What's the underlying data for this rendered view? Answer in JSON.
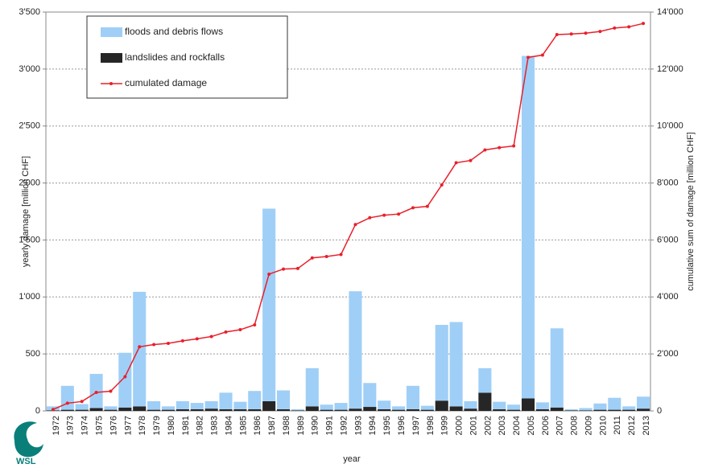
{
  "chart_data": {
    "type": "bar",
    "stacked": true,
    "categories": [
      "1972",
      "1973",
      "1974",
      "1975",
      "1976",
      "1977",
      "1978",
      "1979",
      "1980",
      "1981",
      "1982",
      "1983",
      "1984",
      "1985",
      "1986",
      "1987",
      "1988",
      "1989",
      "1990",
      "1991",
      "1992",
      "1993",
      "1994",
      "1995",
      "1996",
      "1997",
      "1998",
      "1999",
      "2000",
      "2001",
      "2002",
      "2003",
      "2004",
      "2005",
      "2006",
      "2007",
      "2008",
      "2009",
      "2010",
      "2011",
      "2012",
      "2013"
    ],
    "series": [
      {
        "name": "floods and debris flows",
        "color": "#9fcff7",
        "values": [
          35,
          210,
          50,
          300,
          30,
          480,
          1005,
          75,
          30,
          70,
          55,
          65,
          145,
          65,
          160,
          1690,
          165,
          10,
          335,
          45,
          60,
          1030,
          210,
          75,
          30,
          205,
          35,
          665,
          740,
          65,
          215,
          65,
          45,
          3005,
          60,
          695,
          10,
          20,
          55,
          105,
          30,
          105
        ]
      },
      {
        "name": "landslides and rockfalls",
        "color": "#262626",
        "values": [
          5,
          10,
          10,
          25,
          10,
          30,
          40,
          10,
          10,
          15,
          15,
          20,
          15,
          15,
          15,
          85,
          15,
          5,
          40,
          10,
          10,
          20,
          35,
          15,
          10,
          15,
          10,
          90,
          40,
          20,
          160,
          15,
          10,
          110,
          15,
          30,
          5,
          5,
          10,
          10,
          10,
          20
        ]
      },
      {
        "name": "cumulated damage",
        "color": "#e8202a",
        "type": "line",
        "axis": "y2",
        "values": [
          50,
          270,
          330,
          650,
          690,
          1200,
          2250,
          2330,
          2370,
          2460,
          2530,
          2610,
          2770,
          2850,
          3020,
          4800,
          4980,
          5000,
          5370,
          5420,
          5490,
          6540,
          6780,
          6870,
          6910,
          7130,
          7180,
          7930,
          8710,
          8790,
          9160,
          9240,
          9300,
          12410,
          12490,
          13210,
          13230,
          13260,
          13320,
          13440,
          13480,
          13600
        ]
      }
    ],
    "ylim": [
      0,
      3500
    ],
    "yticks": [
      0,
      {
        "value": 500,
        "label": "500"
      },
      {
        "value": 1000,
        "label": "1'000"
      },
      {
        "value": 1500,
        "label": "1'500"
      },
      {
        "value": 2000,
        "label": "2'000"
      },
      {
        "value": 2500,
        "label": "2'500"
      },
      {
        "value": 3000,
        "label": "3'000"
      },
      {
        "value": 3500,
        "label": "3'500"
      }
    ],
    "y2lim": [
      0,
      14000
    ],
    "y2ticks": [
      0,
      {
        "value": 2000,
        "label": "2'000"
      },
      {
        "value": 4000,
        "label": "4'000"
      },
      {
        "value": 6000,
        "label": "6'000"
      },
      {
        "value": 8000,
        "label": "8'000"
      },
      {
        "value": 10000,
        "label": "10'000"
      },
      {
        "value": 12000,
        "label": "12'000"
      },
      {
        "value": 14000,
        "label": "14'000"
      }
    ],
    "ylabel": "yearly damage [million CHF]",
    "y2label": "cumulative sum of damage [million CHF]",
    "xlabel": "year",
    "grid": true,
    "legend": "upper left",
    "logo": "WSL"
  }
}
